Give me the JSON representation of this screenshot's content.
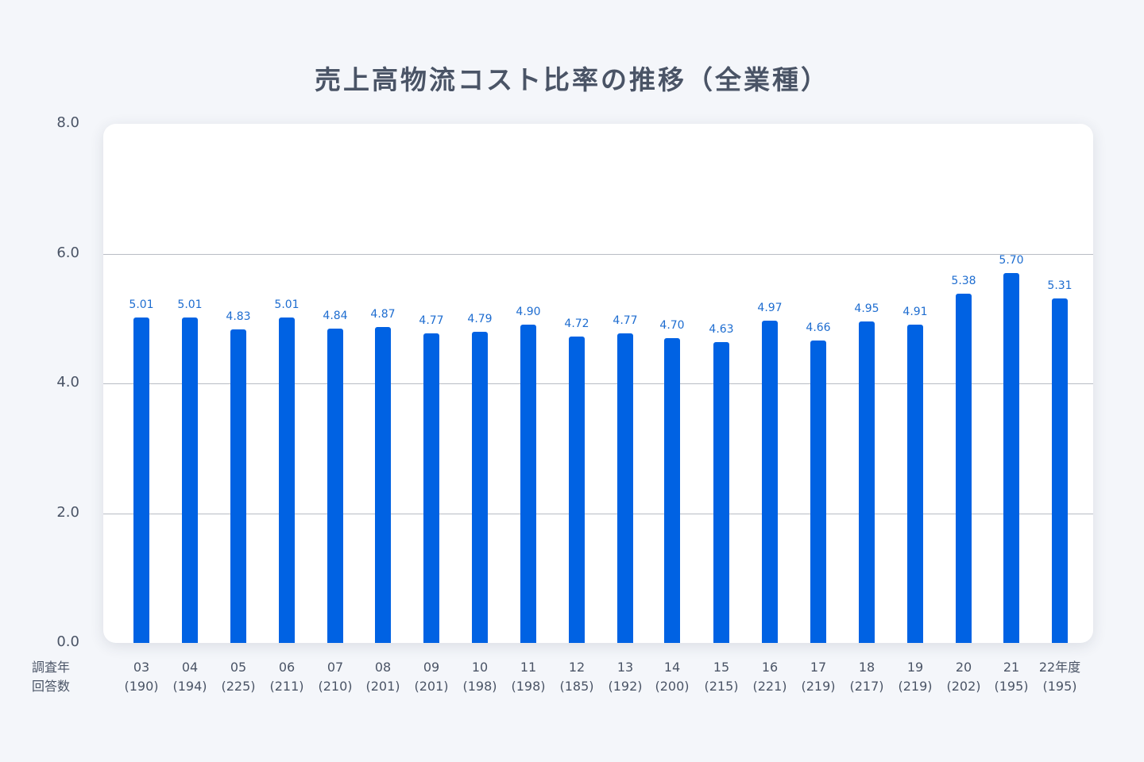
{
  "chart_data": {
    "type": "bar",
    "title": "売上高物流コスト比率の推移（全業種）",
    "xlabel": "調査年 / 回答数",
    "ylabel": "",
    "ylim": [
      0,
      8.0
    ],
    "yticks": [
      "0.0",
      "2.0",
      "4.0",
      "6.0",
      "8.0"
    ],
    "grid": true,
    "x_header": [
      "調査年",
      "回答数"
    ],
    "categories": [
      "03",
      "04",
      "05",
      "06",
      "07",
      "08",
      "09",
      "10",
      "11",
      "12",
      "13",
      "14",
      "15",
      "16",
      "17",
      "18",
      "19",
      "20",
      "21",
      "22年度"
    ],
    "responses": [
      "(190)",
      "(194)",
      "(225)",
      "(211)",
      "(210)",
      "(201)",
      "(201)",
      "(198)",
      "(198)",
      "(185)",
      "(192)",
      "(200)",
      "(215)",
      "(221)",
      "(219)",
      "(217)",
      "(219)",
      "(202)",
      "(195)",
      "(195)"
    ],
    "values": [
      5.01,
      5.01,
      4.83,
      5.01,
      4.84,
      4.87,
      4.77,
      4.79,
      4.9,
      4.72,
      4.77,
      4.7,
      4.63,
      4.97,
      4.66,
      4.95,
      4.91,
      5.38,
      5.7,
      5.31
    ],
    "value_labels": [
      "5.01",
      "5.01",
      "4.83",
      "5.01",
      "4.84",
      "4.87",
      "4.77",
      "4.79",
      "4.90",
      "4.72",
      "4.77",
      "4.70",
      "4.63",
      "4.97",
      "4.66",
      "4.95",
      "4.91",
      "5.38",
      "5.70",
      "5.31"
    ],
    "colors": {
      "bar": "#0062e3",
      "value_label": "#1e6dd0",
      "background": "#f4f6fa"
    }
  }
}
